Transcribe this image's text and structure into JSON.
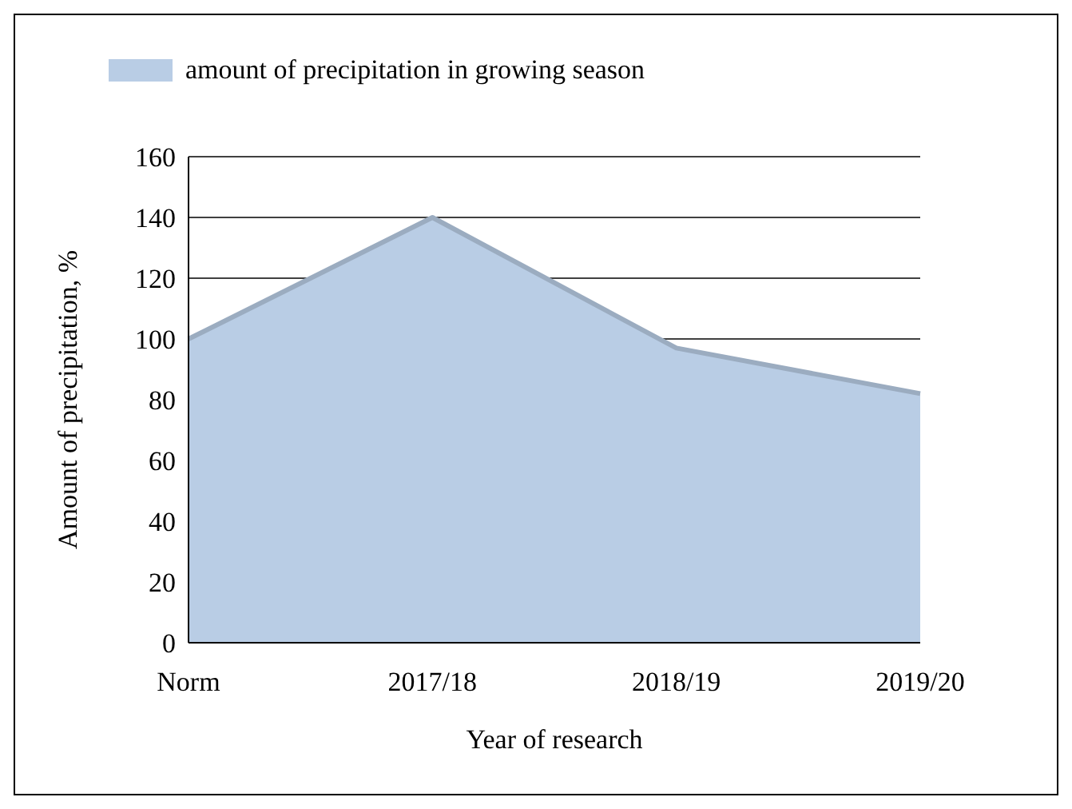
{
  "chart_data": {
    "type": "area",
    "xlabel": "Year of research",
    "ylabel": "Amount of precipitation, %",
    "categories": [
      "Norm",
      "2017/18",
      "2018/19",
      "2019/20"
    ],
    "series": [
      {
        "name": "amount of precipitation in growing season",
        "color": "#b9cde5",
        "values": [
          100,
          140,
          97,
          82
        ]
      }
    ],
    "ylim": [
      0,
      160
    ],
    "yticks": [
      0,
      20,
      40,
      60,
      80,
      100,
      120,
      140,
      160
    ],
    "grid": "y",
    "legend": "top"
  }
}
